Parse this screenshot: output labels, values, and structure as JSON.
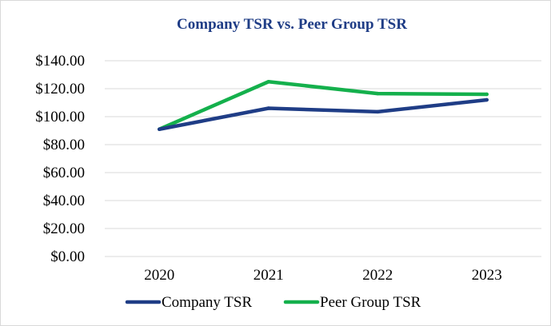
{
  "chart_data": {
    "type": "line",
    "title": "Company TSR vs. Peer Group TSR",
    "xlabel": "",
    "ylabel": "",
    "categories": [
      "2020",
      "2021",
      "2022",
      "2023"
    ],
    "series": [
      {
        "name": "Company TSR",
        "values": [
          91,
          106,
          103.5,
          112
        ],
        "color": "#1f3d86"
      },
      {
        "name": "Peer Group TSR",
        "values": [
          91,
          125,
          116.5,
          116
        ],
        "color": "#14b04c"
      }
    ],
    "ylim": [
      0,
      140
    ],
    "y_ticks": [
      {
        "value": 0,
        "label": "$0.00"
      },
      {
        "value": 20,
        "label": "$20.00"
      },
      {
        "value": 40,
        "label": "$40.00"
      },
      {
        "value": 60,
        "label": "$60.00"
      },
      {
        "value": 80,
        "label": "$80.00"
      },
      {
        "value": 100,
        "label": "$100.00"
      },
      {
        "value": 120,
        "label": "$120.00"
      },
      {
        "value": 140,
        "label": "$140.00"
      }
    ],
    "grid": true,
    "legend_position": "bottom-center",
    "title_color": "#1f3d86",
    "gridline_color": "#d9d9d9"
  }
}
